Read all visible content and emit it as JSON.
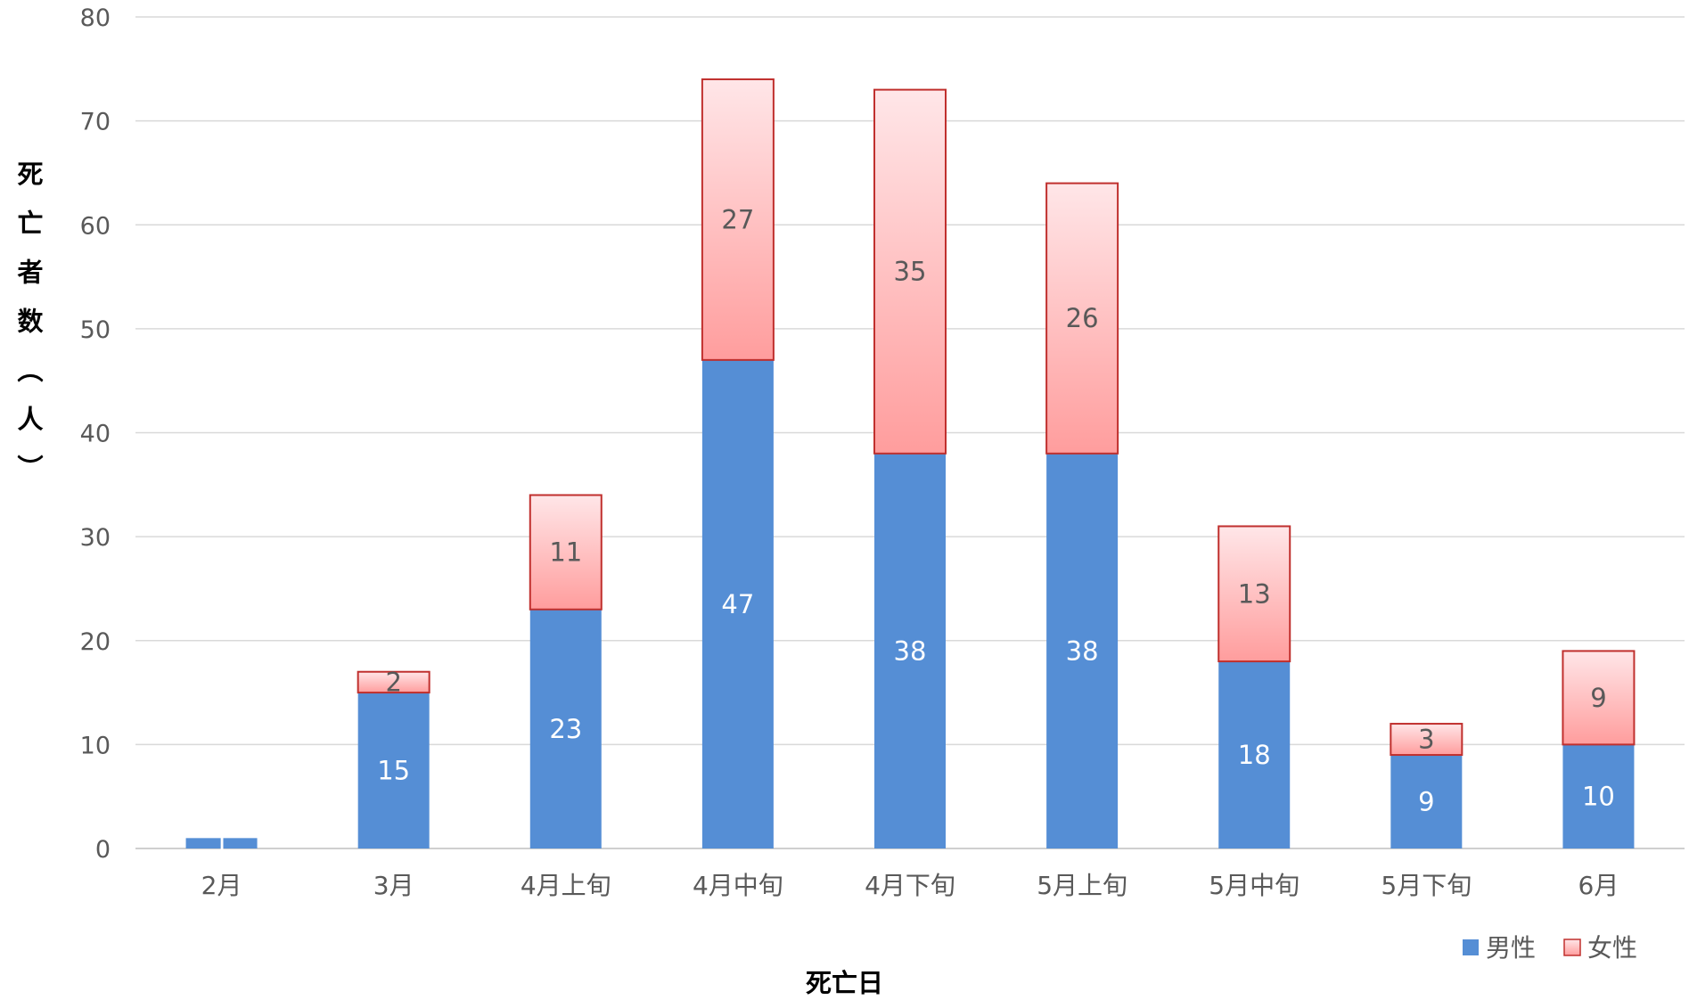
{
  "chart_data": {
    "type": "bar",
    "stacked": true,
    "title": "",
    "xlabel": "死亡日",
    "ylabel": "死亡者数（人）",
    "categories": [
      "2月",
      "3月",
      "4月上旬",
      "4月中旬",
      "4月下旬",
      "5月上旬",
      "5月中旬",
      "5月下旬",
      "6月"
    ],
    "series": [
      {
        "name": "男性",
        "values": [
          1,
          15,
          23,
          47,
          38,
          38,
          18,
          9,
          10
        ],
        "color": "#558ed5"
      },
      {
        "name": "女性",
        "values": [
          0,
          2,
          11,
          27,
          35,
          26,
          13,
          3,
          9
        ],
        "color": "#ff9d9d",
        "color_light": "#ffe6e8",
        "border": "#c0302e"
      }
    ],
    "ylim": [
      0,
      80
    ],
    "yticks": [
      0,
      10,
      20,
      30,
      40,
      50,
      60,
      70,
      80
    ],
    "grid": true,
    "legend": "bottom-right"
  }
}
